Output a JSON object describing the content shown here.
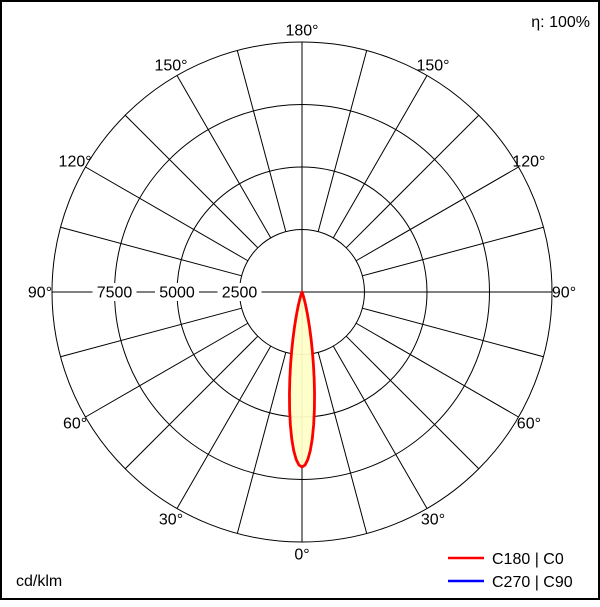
{
  "chart_data": {
    "type": "polar-line",
    "description": "Luminous intensity distribution polar diagram",
    "unit_label": "cd/klm",
    "efficiency_label": "η: 100%",
    "efficiency_percent": 100,
    "angle_unit": "deg",
    "angle_step_deg": 15,
    "angle_labels_deg": [
      0,
      30,
      60,
      90,
      120,
      150,
      180
    ],
    "radial_ticks": [
      2500,
      5000,
      7500
    ],
    "radial_max": 10000,
    "grid_color": "#000000",
    "curve_fill": "#ffffc8",
    "legend_position": "bottom-right",
    "gamma_deg": [
      0,
      1,
      2,
      3,
      4,
      5,
      6,
      7,
      8,
      9,
      10,
      11,
      12,
      13,
      14,
      15,
      16,
      17,
      18,
      19,
      20,
      21,
      22,
      23,
      24,
      25,
      26,
      27,
      28,
      29,
      30
    ],
    "series": [
      {
        "name": "C180 | C0",
        "color": "#ff0000",
        "values_cd_klm": [
          7000,
          6925,
          6700,
          6350,
          5890,
          5340,
          4740,
          4115,
          3500,
          2910,
          2370,
          1890,
          1470,
          1120,
          840,
          610,
          440,
          305,
          210,
          140,
          92,
          60,
          38,
          23,
          14,
          8,
          5,
          3,
          2,
          1,
          0
        ]
      },
      {
        "name": "C270 | C90",
        "color": "#0000ff",
        "values_cd_klm": [
          7000,
          6925,
          6700,
          6350,
          5890,
          5340,
          4740,
          4115,
          3500,
          2910,
          2370,
          1890,
          1470,
          1120,
          840,
          610,
          440,
          305,
          210,
          140,
          92,
          60,
          38,
          23,
          14,
          8,
          5,
          3,
          2,
          1,
          0
        ]
      }
    ]
  }
}
